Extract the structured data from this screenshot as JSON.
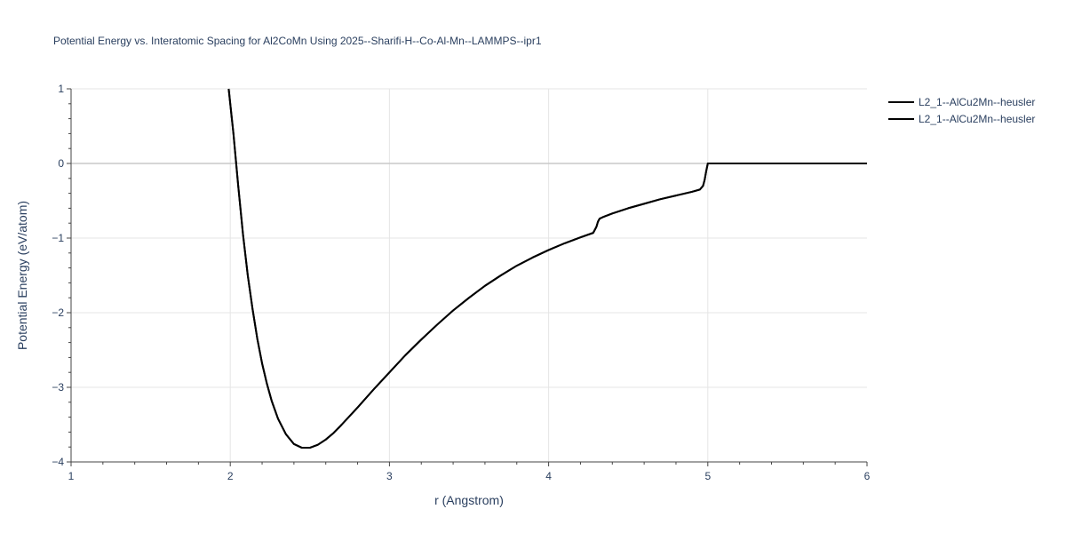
{
  "chart_data": {
    "type": "line",
    "title": "Potential Energy vs. Interatomic Spacing for Al2CoMn Using 2025--Sharifi-H--Co-Al-Mn--LAMMPS--ipr1",
    "xlabel": "r (Angstrom)",
    "ylabel": "Potential Energy (eV/atom)",
    "xlim": [
      1,
      6
    ],
    "ylim": [
      -4,
      1
    ],
    "xticks": [
      "1",
      "2",
      "3",
      "4",
      "5",
      "6"
    ],
    "yticks": [
      "1",
      "0",
      "−1",
      "−2",
      "−3",
      "−4"
    ],
    "xtick_values": [
      1,
      2,
      3,
      4,
      5,
      6
    ],
    "ytick_values": [
      1,
      0,
      -1,
      -2,
      -3,
      -4
    ],
    "grid": true,
    "legend_position": "top-right",
    "series": [
      {
        "name": "L2_1--AlCu2Mn--heusler",
        "color": "#000000",
        "x": [
          1.99,
          2.02,
          2.05,
          2.08,
          2.11,
          2.14,
          2.17,
          2.2,
          2.23,
          2.26,
          2.3,
          2.35,
          2.4,
          2.45,
          2.5,
          2.55,
          2.6,
          2.65,
          2.7,
          2.8,
          2.9,
          3.0,
          3.1,
          3.2,
          3.3,
          3.4,
          3.5,
          3.6,
          3.7,
          3.8,
          3.9,
          4.0,
          4.1,
          4.2,
          4.28,
          4.3,
          4.31,
          4.32,
          4.34,
          4.4,
          4.5,
          4.6,
          4.7,
          4.8,
          4.9,
          4.95,
          4.97,
          4.98,
          4.99,
          5.0,
          5.1,
          5.5,
          6.0
        ],
        "y": [
          1.0,
          0.4,
          -0.3,
          -0.95,
          -1.5,
          -1.95,
          -2.35,
          -2.68,
          -2.95,
          -3.18,
          -3.42,
          -3.63,
          -3.76,
          -3.81,
          -3.81,
          -3.77,
          -3.7,
          -3.61,
          -3.5,
          -3.27,
          -3.03,
          -2.8,
          -2.57,
          -2.36,
          -2.16,
          -1.97,
          -1.8,
          -1.64,
          -1.5,
          -1.37,
          -1.26,
          -1.16,
          -1.07,
          -0.99,
          -0.93,
          -0.85,
          -0.78,
          -0.74,
          -0.72,
          -0.67,
          -0.6,
          -0.54,
          -0.48,
          -0.43,
          -0.38,
          -0.35,
          -0.3,
          -0.22,
          -0.1,
          0.0,
          0.0,
          0.0,
          0.0
        ]
      },
      {
        "name": "L2_1--AlCu2Mn--heusler",
        "color": "#000000",
        "x": [
          1.99,
          2.02,
          2.05,
          2.08,
          2.11,
          2.14,
          2.17,
          2.2,
          2.23,
          2.26,
          2.3,
          2.35,
          2.4,
          2.45,
          2.5,
          2.55,
          2.6,
          2.65,
          2.7,
          2.8,
          2.9,
          3.0,
          3.1,
          3.2,
          3.3,
          3.4,
          3.5,
          3.6,
          3.7,
          3.8,
          3.9,
          4.0,
          4.1,
          4.2,
          4.28,
          4.3,
          4.31,
          4.32,
          4.34,
          4.4,
          4.5,
          4.6,
          4.7,
          4.8,
          4.9,
          4.95,
          4.97,
          4.98,
          4.99,
          5.0,
          5.1,
          5.5,
          6.0
        ],
        "y": [
          1.0,
          0.4,
          -0.3,
          -0.95,
          -1.5,
          -1.95,
          -2.35,
          -2.68,
          -2.95,
          -3.18,
          -3.42,
          -3.63,
          -3.76,
          -3.81,
          -3.81,
          -3.77,
          -3.7,
          -3.61,
          -3.5,
          -3.27,
          -3.03,
          -2.8,
          -2.57,
          -2.36,
          -2.16,
          -1.97,
          -1.8,
          -1.64,
          -1.5,
          -1.37,
          -1.26,
          -1.16,
          -1.07,
          -0.99,
          -0.93,
          -0.85,
          -0.78,
          -0.74,
          -0.72,
          -0.67,
          -0.6,
          -0.54,
          -0.48,
          -0.43,
          -0.38,
          -0.35,
          -0.3,
          -0.22,
          -0.1,
          0.0,
          0.0,
          0.0,
          0.0
        ]
      }
    ]
  }
}
